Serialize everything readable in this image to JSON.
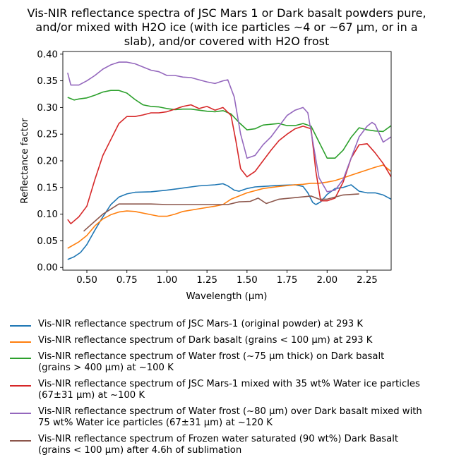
{
  "chart_data": {
    "type": "line",
    "title": "Vis-NIR reflectance spectra of JSC Mars 1 or Dark basalt powders pure,\nand/or mixed with H2O ice (with ice particles ~4 or ~67 µm, or in a\nslab), and/or covered with H2O frost",
    "xlabel": "Wavelength (μm)",
    "ylabel": "Reflectance factor",
    "xlim": [
      0.35,
      2.4
    ],
    "ylim": [
      -0.005,
      0.405
    ],
    "xticks": [
      0.5,
      0.75,
      1.0,
      1.25,
      1.5,
      1.75,
      2.0,
      2.25
    ],
    "xtick_labels": [
      "0.50",
      "0.75",
      "1.00",
      "1.25",
      "1.50",
      "1.75",
      "2.00",
      "2.25"
    ],
    "yticks": [
      0.0,
      0.05,
      0.1,
      0.15,
      0.2,
      0.25,
      0.3,
      0.35,
      0.4
    ],
    "ytick_labels": [
      "0.00",
      "0.05",
      "0.10",
      "0.15",
      "0.20",
      "0.25",
      "0.30",
      "0.35",
      "0.40"
    ],
    "grid": false,
    "legend_position": "below",
    "series": [
      {
        "name": "Vis-NIR reflectance spectrum of JSC Mars-1 (original powder) at 293 K",
        "color": "#1f77b4",
        "x": [
          0.38,
          0.42,
          0.46,
          0.5,
          0.55,
          0.6,
          0.65,
          0.7,
          0.75,
          0.8,
          0.9,
          1.0,
          1.1,
          1.2,
          1.3,
          1.35,
          1.38,
          1.42,
          1.45,
          1.5,
          1.55,
          1.6,
          1.7,
          1.8,
          1.85,
          1.88,
          1.91,
          1.93,
          1.96,
          2.0,
          2.05,
          2.1,
          2.15,
          2.2,
          2.25,
          2.3,
          2.35,
          2.4
        ],
        "y": [
          0.015,
          0.02,
          0.028,
          0.043,
          0.07,
          0.095,
          0.118,
          0.132,
          0.138,
          0.141,
          0.142,
          0.145,
          0.149,
          0.153,
          0.155,
          0.157,
          0.153,
          0.145,
          0.143,
          0.148,
          0.151,
          0.152,
          0.154,
          0.155,
          0.152,
          0.14,
          0.122,
          0.118,
          0.123,
          0.137,
          0.148,
          0.15,
          0.155,
          0.143,
          0.14,
          0.14,
          0.136,
          0.128
        ]
      },
      {
        "name": "Vis-NIR reflectance spectrum of Dark basalt (grains < 100 µm) at 293 K",
        "color": "#ff7f0e",
        "x": [
          0.38,
          0.45,
          0.5,
          0.55,
          0.6,
          0.65,
          0.7,
          0.75,
          0.8,
          0.9,
          0.95,
          1.0,
          1.05,
          1.1,
          1.2,
          1.3,
          1.35,
          1.4,
          1.5,
          1.6,
          1.7,
          1.8,
          1.85,
          1.9,
          1.95,
          2.0,
          2.05,
          2.1,
          2.15,
          2.2,
          2.25,
          2.3,
          2.35,
          2.4
        ],
        "y": [
          0.036,
          0.048,
          0.06,
          0.078,
          0.091,
          0.099,
          0.104,
          0.106,
          0.105,
          0.099,
          0.096,
          0.096,
          0.1,
          0.105,
          0.11,
          0.115,
          0.118,
          0.128,
          0.14,
          0.148,
          0.152,
          0.155,
          0.156,
          0.158,
          0.158,
          0.16,
          0.163,
          0.168,
          0.173,
          0.178,
          0.183,
          0.188,
          0.192,
          0.18
        ]
      },
      {
        "name": "Vis-NIR reflectance spectrum of Water frost (~75 µm thick) on Dark basalt\n(grains > 400 µm) at ~100 K",
        "color": "#2ca02c",
        "x": [
          0.38,
          0.42,
          0.45,
          0.5,
          0.55,
          0.6,
          0.65,
          0.7,
          0.75,
          0.8,
          0.85,
          0.9,
          0.95,
          1.0,
          1.05,
          1.1,
          1.15,
          1.2,
          1.25,
          1.3,
          1.35,
          1.4,
          1.45,
          1.5,
          1.55,
          1.6,
          1.7,
          1.75,
          1.8,
          1.85,
          1.9,
          1.95,
          2.0,
          2.05,
          2.1,
          2.15,
          2.2,
          2.25,
          2.3,
          2.35,
          2.4
        ],
        "y": [
          0.319,
          0.314,
          0.316,
          0.318,
          0.323,
          0.329,
          0.332,
          0.332,
          0.327,
          0.315,
          0.305,
          0.302,
          0.301,
          0.298,
          0.296,
          0.297,
          0.297,
          0.295,
          0.293,
          0.292,
          0.294,
          0.288,
          0.272,
          0.258,
          0.26,
          0.267,
          0.27,
          0.266,
          0.266,
          0.27,
          0.265,
          0.235,
          0.205,
          0.205,
          0.22,
          0.244,
          0.262,
          0.258,
          0.256,
          0.255,
          0.266
        ]
      },
      {
        "name": "Vis-NIR reflectance spectrum of JSC Mars-1 mixed with 35 wt% Water ice particles\n(67±31 µm) at ~100 K",
        "color": "#d62728",
        "x": [
          0.38,
          0.4,
          0.45,
          0.5,
          0.55,
          0.6,
          0.65,
          0.7,
          0.75,
          0.8,
          0.85,
          0.9,
          0.95,
          1.0,
          1.05,
          1.1,
          1.15,
          1.2,
          1.25,
          1.3,
          1.35,
          1.4,
          1.43,
          1.46,
          1.5,
          1.55,
          1.6,
          1.65,
          1.7,
          1.75,
          1.8,
          1.85,
          1.9,
          1.93,
          1.96,
          2.0,
          2.05,
          2.1,
          2.15,
          2.2,
          2.25,
          2.3,
          2.35,
          2.4
        ],
        "y": [
          0.09,
          0.082,
          0.095,
          0.115,
          0.165,
          0.21,
          0.24,
          0.27,
          0.283,
          0.283,
          0.286,
          0.29,
          0.29,
          0.292,
          0.297,
          0.302,
          0.305,
          0.298,
          0.302,
          0.295,
          0.3,
          0.285,
          0.238,
          0.185,
          0.17,
          0.18,
          0.2,
          0.22,
          0.238,
          0.25,
          0.26,
          0.265,
          0.26,
          0.18,
          0.125,
          0.125,
          0.13,
          0.16,
          0.205,
          0.23,
          0.232,
          0.215,
          0.195,
          0.17
        ]
      },
      {
        "name": "Vis-NIR reflectance spectrum of Water frost (~80 µm) over Dark basalt mixed with\n75 wt% Water ice particles (67±31 µm) at ~120 K",
        "color": "#9467bd",
        "x": [
          0.38,
          0.4,
          0.45,
          0.5,
          0.55,
          0.6,
          0.65,
          0.7,
          0.75,
          0.8,
          0.9,
          0.95,
          1.0,
          1.05,
          1.1,
          1.15,
          1.2,
          1.25,
          1.3,
          1.35,
          1.38,
          1.42,
          1.46,
          1.5,
          1.55,
          1.6,
          1.65,
          1.7,
          1.75,
          1.8,
          1.85,
          1.88,
          1.92,
          1.95,
          2.0,
          2.05,
          2.1,
          2.15,
          2.2,
          2.25,
          2.28,
          2.3,
          2.35,
          2.4
        ],
        "y": [
          0.365,
          0.342,
          0.342,
          0.35,
          0.36,
          0.372,
          0.38,
          0.385,
          0.385,
          0.382,
          0.37,
          0.367,
          0.36,
          0.36,
          0.357,
          0.356,
          0.352,
          0.348,
          0.345,
          0.35,
          0.352,
          0.32,
          0.25,
          0.205,
          0.21,
          0.23,
          0.245,
          0.265,
          0.285,
          0.295,
          0.3,
          0.29,
          0.22,
          0.168,
          0.142,
          0.145,
          0.165,
          0.205,
          0.245,
          0.265,
          0.272,
          0.268,
          0.235,
          0.245
        ]
      },
      {
        "name": "Vis-NIR reflectance spectrum of Frozen water saturated (90 wt%) Dark Basalt\n(grains < 100 µm) after 4.6h of sublimation",
        "color": "#8c564b",
        "x": [
          0.48,
          0.6,
          0.7,
          0.8,
          0.9,
          1.0,
          1.1,
          1.2,
          1.3,
          1.38,
          1.45,
          1.52,
          1.57,
          1.62,
          1.7,
          1.8,
          1.9,
          1.95,
          2.0,
          2.1,
          2.2
        ],
        "y": [
          0.068,
          0.1,
          0.119,
          0.119,
          0.119,
          0.118,
          0.118,
          0.118,
          0.118,
          0.118,
          0.123,
          0.124,
          0.13,
          0.12,
          0.128,
          0.131,
          0.134,
          0.128,
          0.128,
          0.136,
          0.138
        ]
      }
    ]
  }
}
